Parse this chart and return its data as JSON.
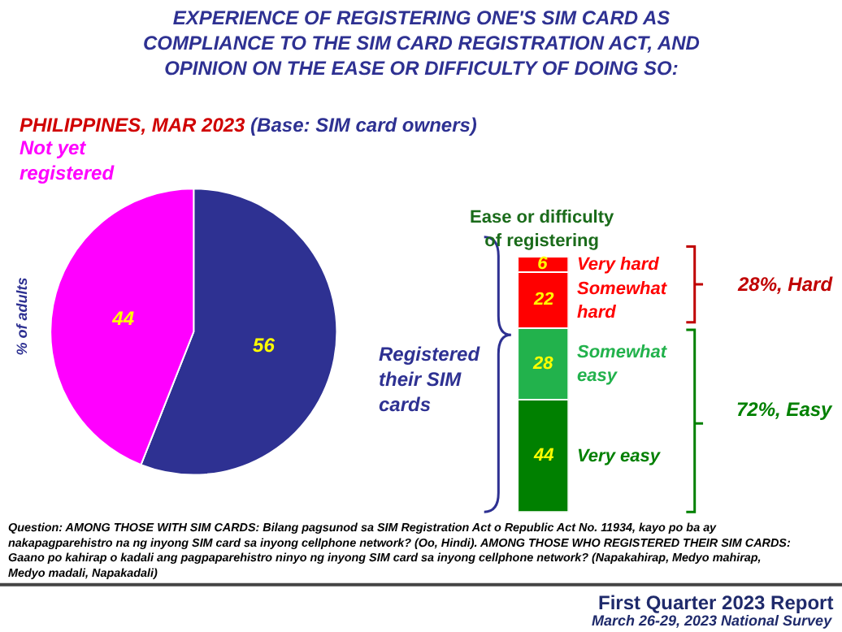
{
  "chart_data": [
    {
      "type": "pie",
      "title": "EXPERIENCE OF REGISTERING ONE'S SIM CARD AS COMPLIANCE TO THE SIM CARD REGISTRATION ACT, AND OPINION ON THE EASE OR DIFFICULTY OF DOING SO:",
      "subtitle": "PHILIPPINES, MAR 2023 (Base: SIM card owners)",
      "ylabel": "% of adults",
      "categories": [
        "Registered their SIM cards",
        "Not yet registered"
      ],
      "values": [
        56,
        44
      ],
      "colors": [
        "#2e3192",
        "#ff00ff"
      ],
      "data_labels": true,
      "annotations": [
        "Question: AMONG THOSE WITH SIM CARDS: Bilang pagsunod sa SIM Registration Act o Republic Act No. 11934, kayo po ba ay nakapagparehistro na ng inyong SIM card sa inyong cellphone network? (Oo, Hindi). AMONG THOSE WHO REGISTERED THEIR SIM CARDS: Gaano po kahirap o kadali ang pagpaparehistro ninyo ng inyong SIM card sa inyong cellphone network? (Napakahirap, Medyo mahirap, Medyo madali, Napakadali)",
        "First Quarter 2023 Report",
        "March 26-29, 2023 National Survey"
      ]
    },
    {
      "type": "bar",
      "stacked": true,
      "title": "Ease or difficulty of registering",
      "categories": [
        null
      ],
      "data_labels": true,
      "series": [
        {
          "name": "Very easy",
          "color": "#008000",
          "values": [
            44
          ]
        },
        {
          "name": "Somewhat easy",
          "color": "#22b24c",
          "values": [
            28
          ]
        },
        {
          "name": "Somewhat hard",
          "color": "#ff0000",
          "values": [
            22
          ]
        },
        {
          "name": "Very hard",
          "color": "#ff0000",
          "values": [
            6
          ]
        }
      ],
      "annotations": [
        "28%, Hard",
        "72%, Easy"
      ]
    }
  ]
}
